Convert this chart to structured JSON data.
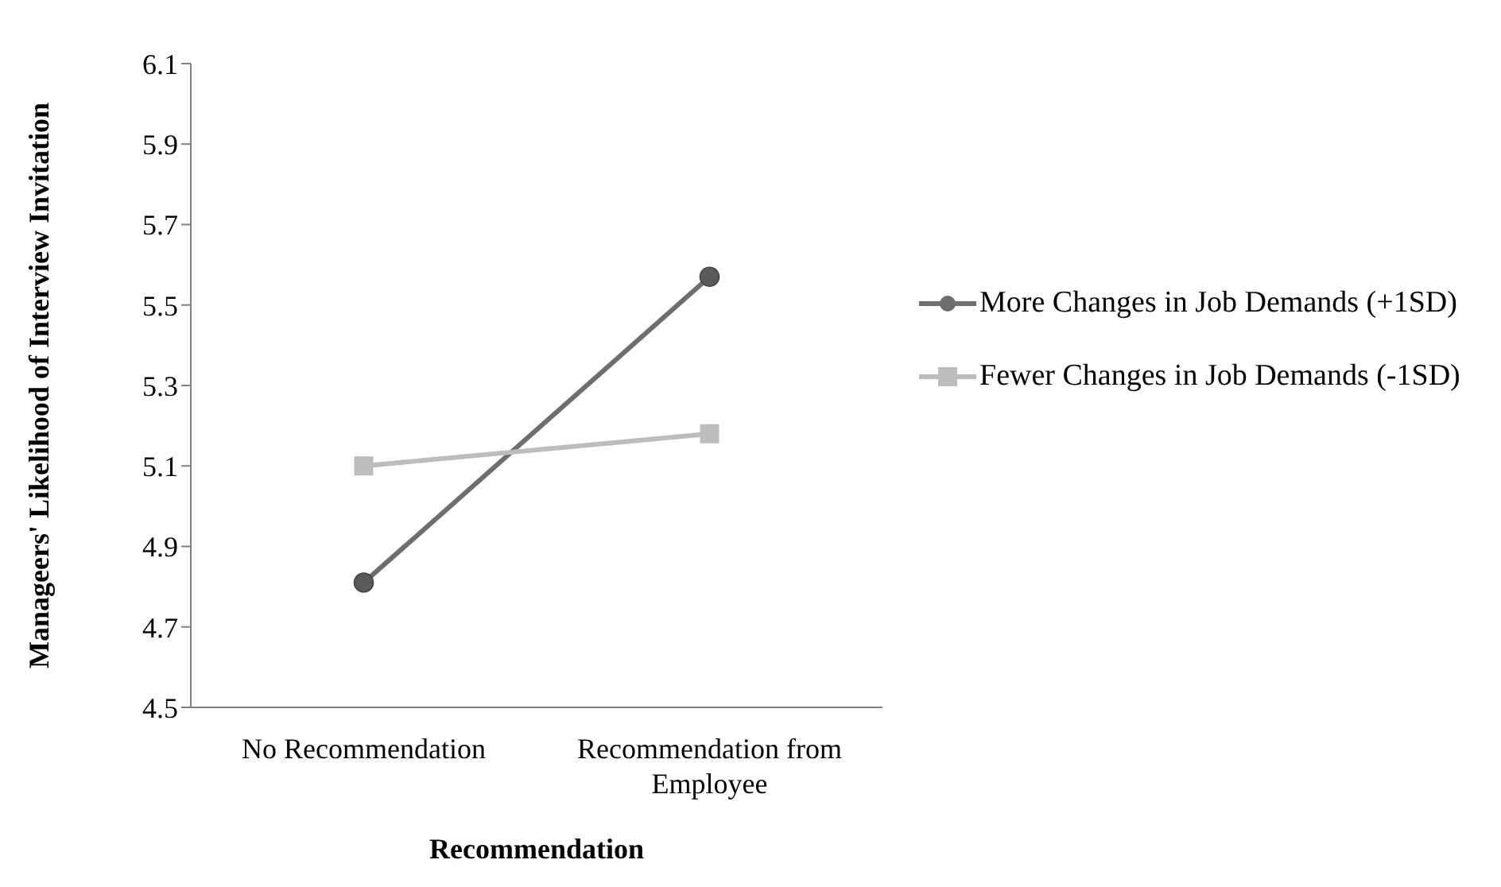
{
  "chart_data": {
    "type": "line",
    "xlabel": "Recommendation",
    "ylabel": "Manageers' Likelihood of Interview Invitation",
    "categories": [
      "No Recommendation",
      "Recommendation from Employee"
    ],
    "series": [
      {
        "name": "More Changes in Job Demands (+1SD)",
        "color": "#6e6e6e",
        "marker": "circle",
        "values": [
          4.81,
          5.57
        ]
      },
      {
        "name": "Fewer Changes in Job Demands (-1SD)",
        "color": "#bdbdbd",
        "marker": "square",
        "values": [
          5.1,
          5.18
        ]
      }
    ],
    "ylim": [
      4.5,
      6.1
    ],
    "yticks": [
      {
        "value": 4.5,
        "label": "4.5"
      },
      {
        "value": 4.7,
        "label": "4.7"
      },
      {
        "value": 4.9,
        "label": "4.9"
      },
      {
        "value": 5.1,
        "label": "5.1"
      },
      {
        "value": 5.3,
        "label": "5.3"
      },
      {
        "value": 5.5,
        "label": "5.5"
      },
      {
        "value": 5.7,
        "label": "5.7"
      },
      {
        "value": 5.9,
        "label": "5.9"
      },
      {
        "value": 6.1,
        "label": "6.1"
      }
    ],
    "grid": false,
    "legend": "right"
  }
}
